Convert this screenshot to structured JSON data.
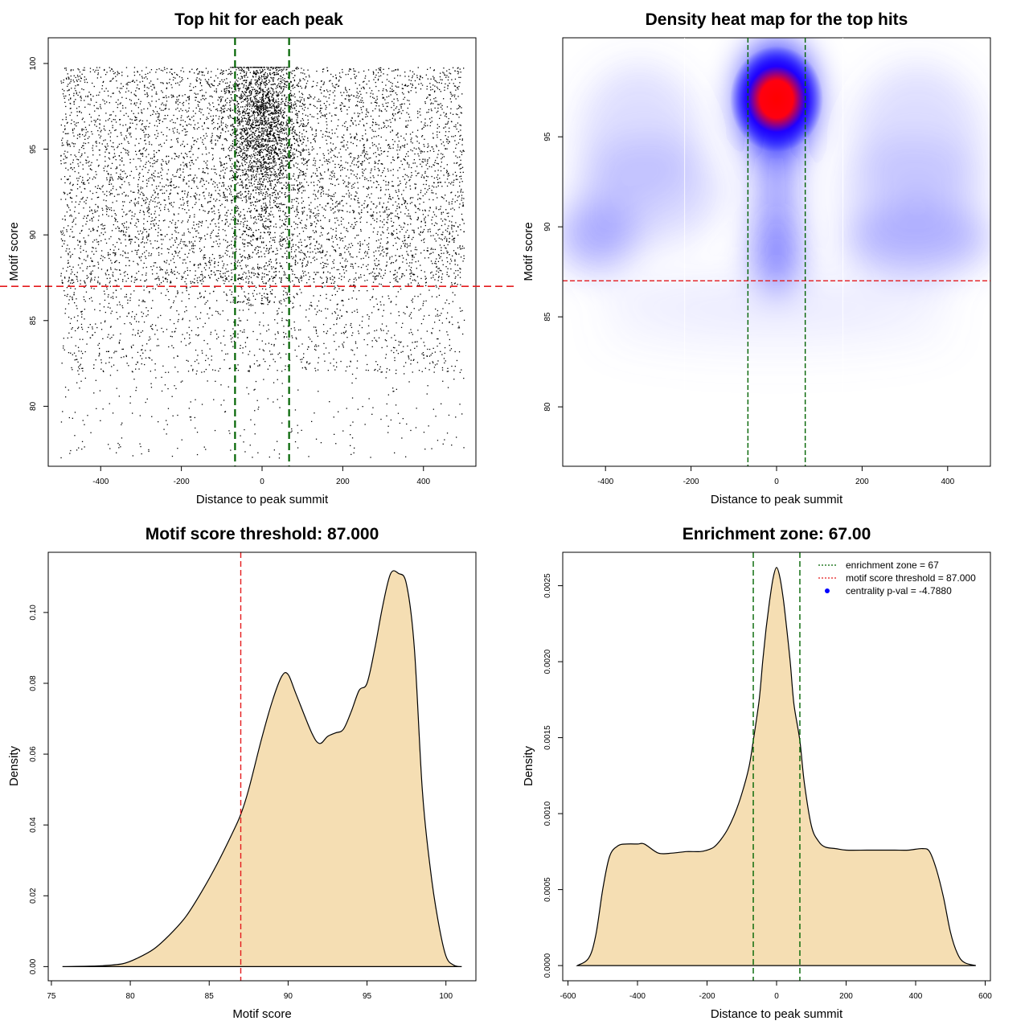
{
  "colors": {
    "green": "#006400",
    "red": "#e41a1c",
    "fill": "#f5deb3",
    "heat_low": "#ffffff",
    "heat_mid": "#0000ff",
    "heat_high": "#ff0000"
  },
  "chart_data": [
    {
      "id": "scatter",
      "type": "scatter",
      "title": "Top hit for each peak",
      "xlabel": "Distance to peak summit",
      "ylabel": "Motif score",
      "xlim": [
        -530,
        530
      ],
      "ylim": [
        76.5,
        101.5
      ],
      "xticks": [
        -400,
        -200,
        0,
        200,
        400
      ],
      "yticks": [
        80,
        85,
        90,
        95,
        100
      ],
      "vlines": [
        -67,
        67
      ],
      "hline": 87,
      "x_range": [
        -500,
        500
      ],
      "score_range": [
        77,
        99.8
      ],
      "central_band": [
        -70,
        70
      ],
      "central_score_mode": 96.5,
      "grid": false,
      "note": "Several thousand points; summarised by range and central band"
    },
    {
      "id": "heatmap",
      "type": "heatmap",
      "title": "Density heat map for the top hits",
      "xlabel": "Distance to peak summit",
      "ylabel": "Motif score",
      "xlim": [
        -500,
        500
      ],
      "ylim": [
        76.7,
        100.5
      ],
      "xticks": [
        -400,
        -200,
        0,
        200,
        400
      ],
      "yticks": [
        80,
        85,
        90,
        95
      ],
      "vlines": [
        -67,
        67
      ],
      "hline": 87,
      "peak": {
        "x": 0,
        "y": 97
      },
      "color_scale": [
        "white",
        "blue",
        "red"
      ]
    },
    {
      "id": "score_density",
      "type": "area",
      "title": "Motif score threshold: 87.000",
      "xlabel": "Motif score",
      "ylabel": "Density",
      "xlim": [
        74.8,
        101.9
      ],
      "ylim": [
        -0.004,
        0.117
      ],
      "xticks": [
        75,
        80,
        85,
        90,
        95,
        100
      ],
      "yticks": [
        0.0,
        0.02,
        0.04,
        0.06,
        0.08,
        0.1
      ],
      "ytick_labels": [
        "0.00",
        "0.02",
        "0.04",
        "0.06",
        "0.08",
        "0.10"
      ],
      "vline": 87,
      "x": [
        75.7,
        78,
        79.5,
        80.5,
        81.5,
        82.5,
        83.5,
        84.5,
        85.5,
        86.5,
        87,
        87.5,
        88.3,
        89,
        89.6,
        90,
        90.5,
        91.5,
        92,
        92.5,
        93,
        93.5,
        94,
        94.5,
        95,
        95.5,
        96,
        96.5,
        97,
        97.5,
        98,
        98.5,
        99,
        99.5,
        100,
        100.5,
        101
      ],
      "y": [
        0.0,
        0.0002,
        0.0008,
        0.0025,
        0.005,
        0.009,
        0.014,
        0.021,
        0.029,
        0.038,
        0.043,
        0.05,
        0.064,
        0.075,
        0.082,
        0.0825,
        0.077,
        0.066,
        0.063,
        0.065,
        0.066,
        0.067,
        0.072,
        0.078,
        0.08,
        0.09,
        0.102,
        0.111,
        0.111,
        0.108,
        0.09,
        0.05,
        0.028,
        0.013,
        0.003,
        0.0004,
        0.0
      ]
    },
    {
      "id": "distance_density",
      "type": "area",
      "title": "Enrichment zone: 67.00",
      "xlabel": "Distance to peak summit",
      "ylabel": "Density",
      "xlim": [
        -615,
        615
      ],
      "ylim": [
        -0.0001,
        0.00272
      ],
      "xticks": [
        -600,
        -400,
        -200,
        0,
        200,
        400,
        600
      ],
      "yticks": [
        0.0,
        0.0005,
        0.001,
        0.0015,
        0.002,
        0.0025
      ],
      "ytick_labels": [
        "0.0000",
        "0.0005",
        "0.0010",
        "0.0015",
        "0.0020",
        "0.0025"
      ],
      "vlines": [
        -67,
        67
      ],
      "x": [
        -573,
        -540,
        -520,
        -500,
        -480,
        -455,
        -430,
        -400,
        -380,
        -340,
        -300,
        -260,
        -220,
        -200,
        -180,
        -160,
        -140,
        -120,
        -100,
        -80,
        -67,
        -50,
        -40,
        -30,
        -20,
        -10,
        0,
        10,
        20,
        30,
        40,
        50,
        67,
        80,
        100,
        120,
        140,
        170,
        200,
        260,
        300,
        340,
        380,
        420,
        440,
        460,
        480,
        500,
        520,
        540,
        573
      ],
      "y": [
        0.0,
        5e-05,
        0.0002,
        0.0005,
        0.00072,
        0.00079,
        0.0008,
        0.0008,
        0.0008,
        0.00074,
        0.00074,
        0.00075,
        0.00075,
        0.00076,
        0.00078,
        0.00083,
        0.0009,
        0.001,
        0.00113,
        0.0013,
        0.00148,
        0.00175,
        0.002,
        0.00222,
        0.0024,
        0.00255,
        0.00262,
        0.00255,
        0.0024,
        0.0022,
        0.00198,
        0.00172,
        0.00148,
        0.0012,
        0.00092,
        0.00082,
        0.00078,
        0.00077,
        0.00076,
        0.00076,
        0.00076,
        0.00076,
        0.00076,
        0.00077,
        0.00075,
        0.00063,
        0.00045,
        0.00022,
        8e-05,
        2e-05,
        0.0
      ],
      "legend": [
        {
          "label": "enrichment zone = 67",
          "kind": "dotted-line",
          "color": "#006400"
        },
        {
          "label": "motif score threshold = 87.000",
          "kind": "dotted-line",
          "color": "#e41a1c"
        },
        {
          "label": "centrality p-val = -4.7880",
          "kind": "point",
          "color": "#0000ff"
        }
      ],
      "legend_position": "top-right"
    }
  ]
}
